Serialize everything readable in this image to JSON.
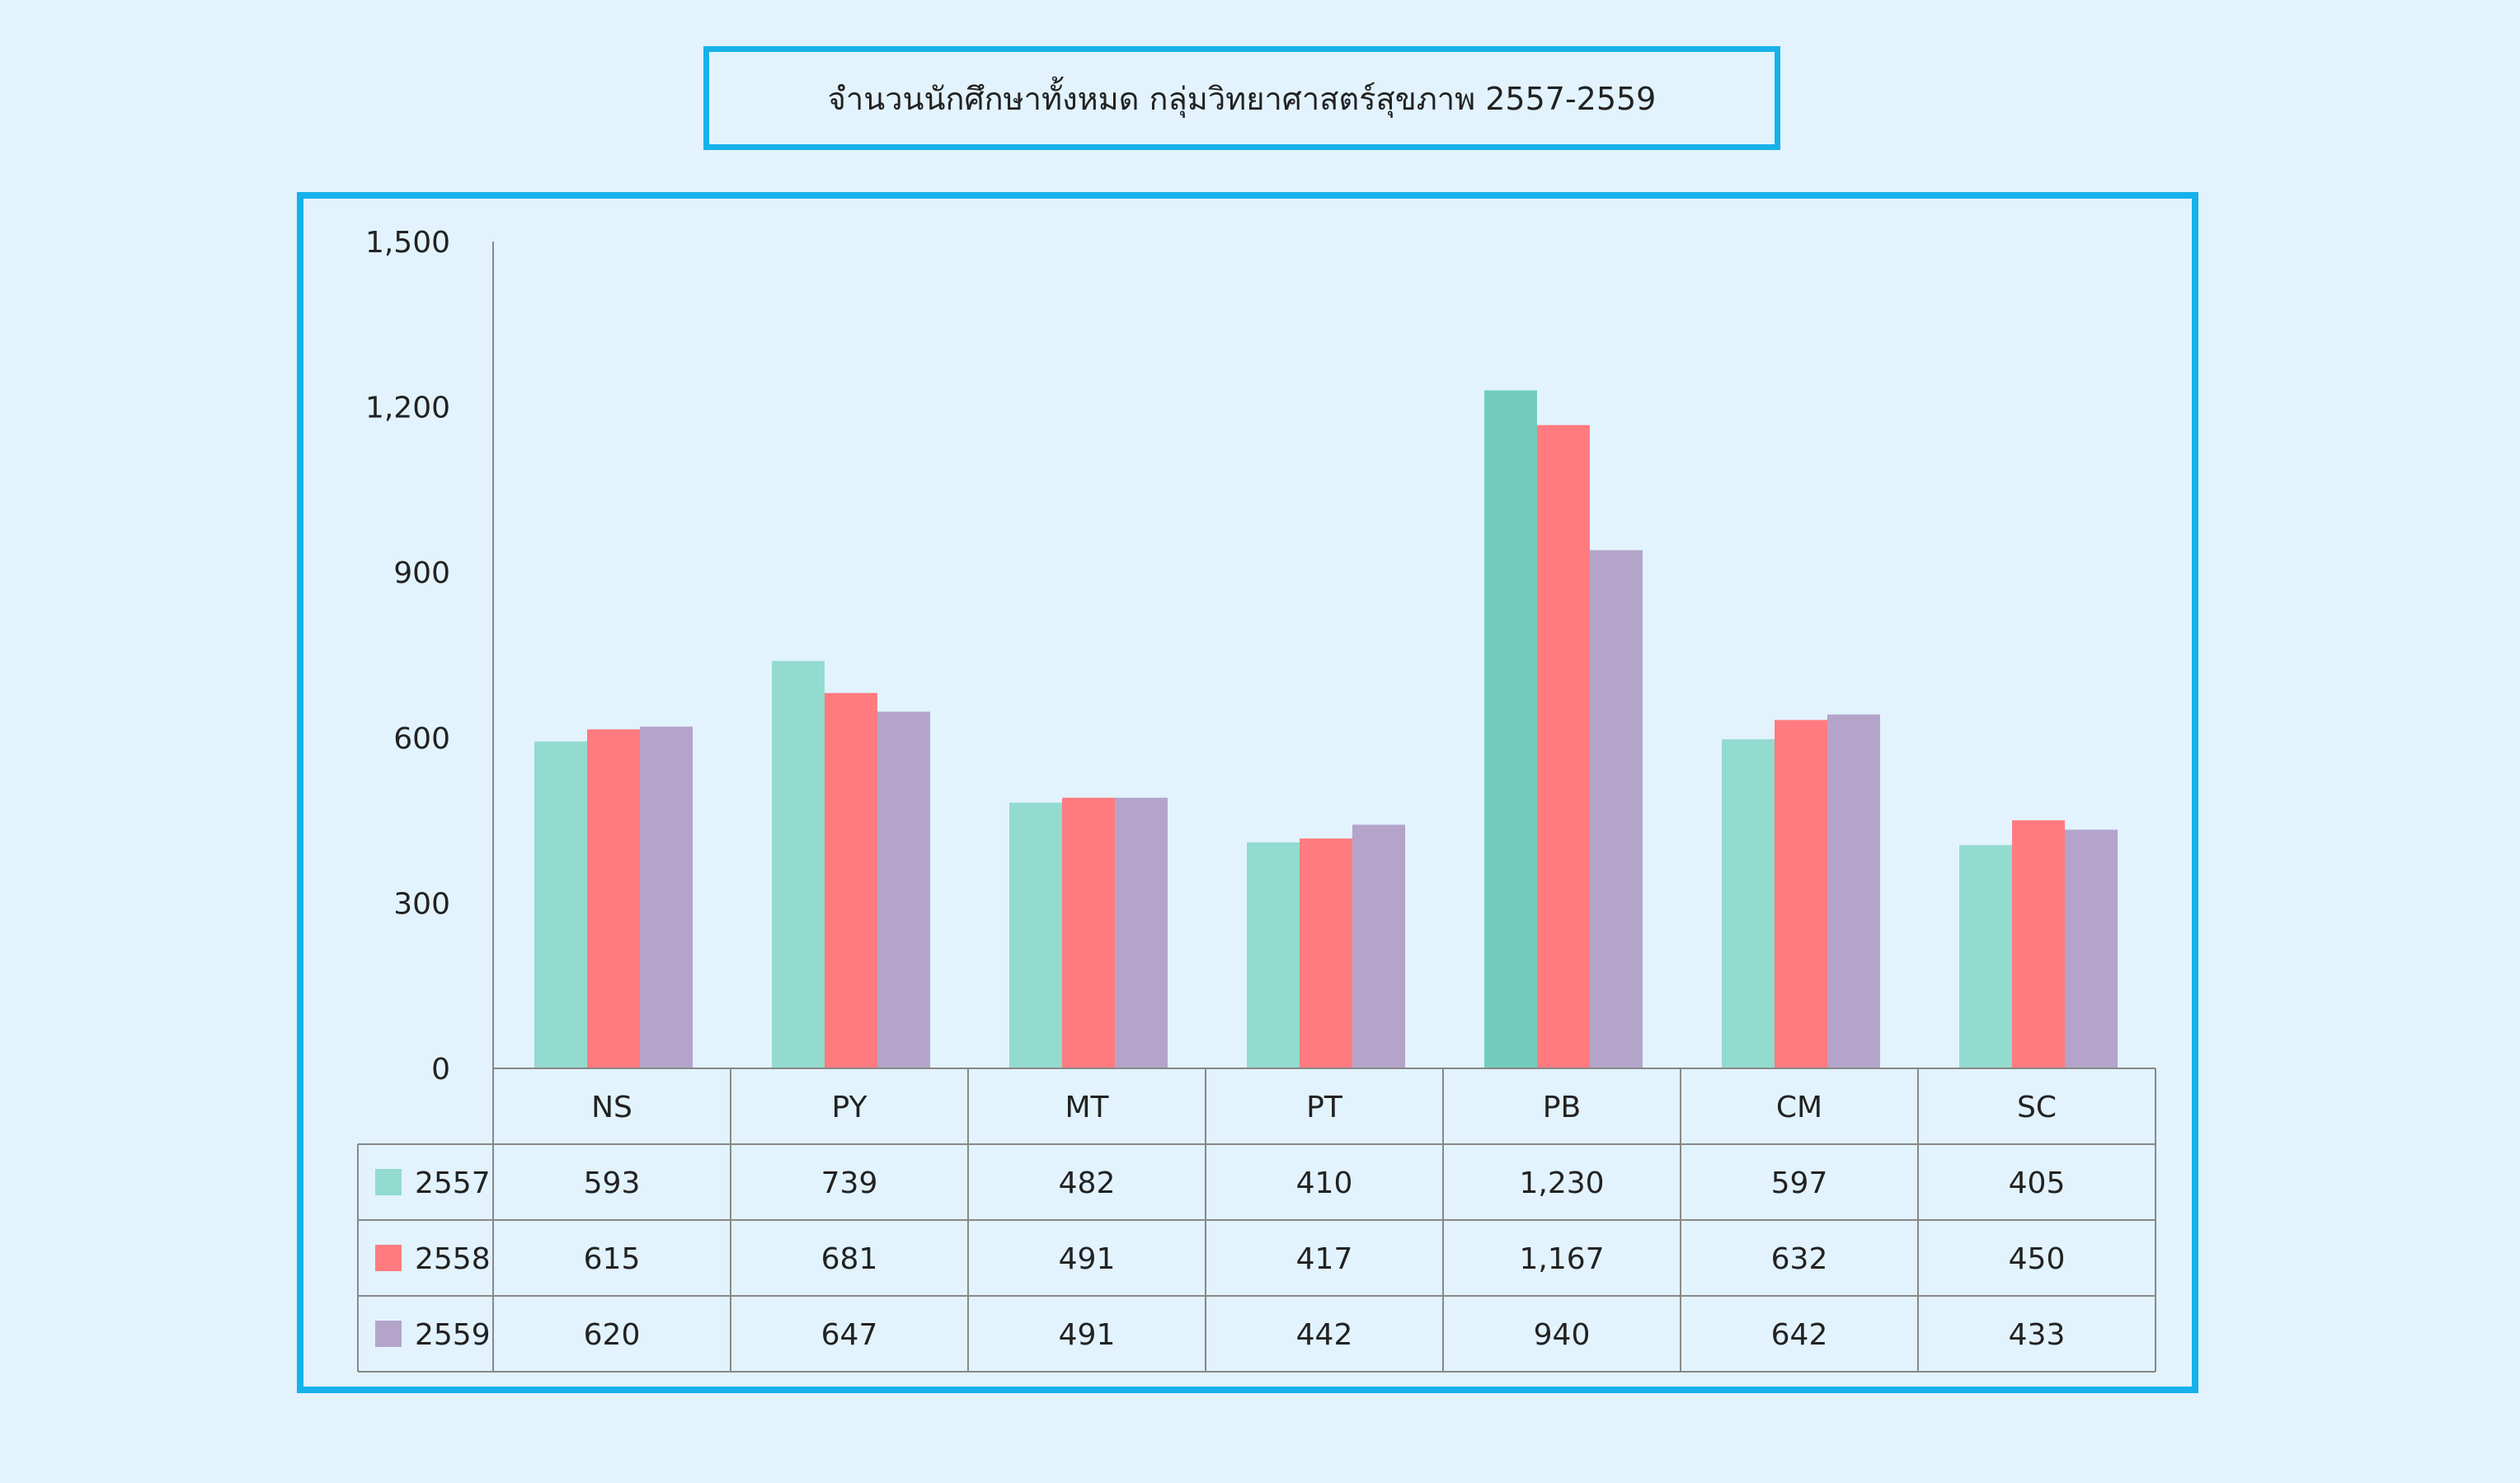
{
  "chart_data": {
    "type": "bar",
    "title": "จำนวนนักศึกษาทั้งหมด กลุ่มวิทยาศาสตร์สุขภาพ  2557-2559",
    "categories": [
      "NS",
      "PY",
      "MT",
      "PT",
      "PB",
      "CM",
      "SC"
    ],
    "series": [
      {
        "name": "2557",
        "color": "#93dbcf",
        "values": [
          593,
          739,
          482,
          410,
          1230,
          597,
          405
        ]
      },
      {
        "name": "2558",
        "color": "#ff7b80",
        "values": [
          615,
          681,
          491,
          417,
          1167,
          632,
          450
        ]
      },
      {
        "name": "2559",
        "color": "#b4a4ca",
        "values": [
          620,
          647,
          491,
          442,
          940,
          642,
          433
        ]
      }
    ],
    "highlight_color": "#72cdbd",
    "ylim": [
      0,
      1500
    ],
    "yticks": [
      "0",
      "300",
      "600",
      "900",
      "1,200",
      "1,500"
    ],
    "table_values": [
      [
        "593",
        "739",
        "482",
        "410",
        "1,230",
        "597",
        "405"
      ],
      [
        "615",
        "681",
        "491",
        "417",
        "1,167",
        "632",
        "450"
      ],
      [
        "620",
        "647",
        "491",
        "442",
        "940",
        "642",
        "433"
      ]
    ],
    "grid": false,
    "legend": "data-table-below"
  }
}
